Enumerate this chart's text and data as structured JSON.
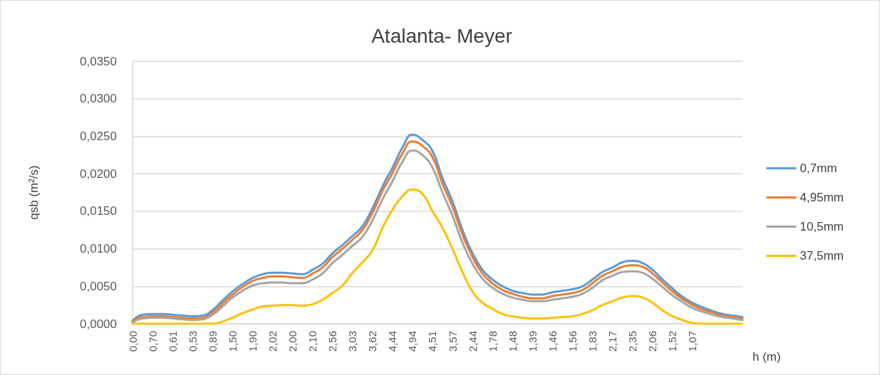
{
  "chart_data": {
    "type": "line",
    "title": "Atalanta- Meyer",
    "xlabel": "h (m)",
    "ylabel": "qsb (m²/s)",
    "categories": [
      "0,00",
      null,
      "0,70",
      null,
      "0,61",
      null,
      "0,53",
      null,
      "0,89",
      null,
      "1,50",
      null,
      "1,90",
      null,
      "2,02",
      null,
      "2,00",
      null,
      "2,10",
      null,
      "2,56",
      null,
      "3,03",
      null,
      "3,62",
      null,
      "4,44",
      null,
      "4,94",
      null,
      "4,51",
      null,
      "3,57",
      null,
      "2,44",
      null,
      "1,78",
      null,
      "1,48",
      null,
      "1,39",
      null,
      "1,46",
      null,
      "1,56",
      null,
      "1,83",
      null,
      "2,17",
      null,
      "2,35",
      null,
      "2,06",
      null,
      "1,52",
      null,
      "1,07",
      null,
      null,
      null,
      null,
      null
    ],
    "series": [
      {
        "name": "0,7mm",
        "color": "#5b9bd5",
        "values": [
          0.0004,
          0.0012,
          0.0013,
          0.0013,
          0.0012,
          0.0011,
          0.001,
          0.0011,
          0.0018,
          0.0031,
          0.0043,
          0.0053,
          0.0061,
          0.0066,
          0.0068,
          0.0068,
          0.0067,
          0.0066,
          0.0072,
          0.008,
          0.0094,
          0.0105,
          0.0117,
          0.013,
          0.0154,
          0.0183,
          0.0208,
          0.0235,
          0.0252,
          0.0245,
          0.023,
          0.0194,
          0.0163,
          0.0125,
          0.0094,
          0.0072,
          0.0059,
          0.005,
          0.0044,
          0.0041,
          0.0039,
          0.0039,
          0.0042,
          0.0044,
          0.0046,
          0.005,
          0.0059,
          0.0069,
          0.0075,
          0.0082,
          0.0084,
          0.0081,
          0.0072,
          0.0059,
          0.0047,
          0.0036,
          0.0028,
          0.0022,
          0.0017,
          0.0013,
          0.0011,
          0.0009
        ]
      },
      {
        "name": "4,95mm",
        "color": "#ed7d31",
        "values": [
          0.0003,
          0.0009,
          0.001,
          0.001,
          0.0009,
          0.0008,
          0.0007,
          0.0008,
          0.0015,
          0.0027,
          0.0039,
          0.0049,
          0.0057,
          0.0061,
          0.0063,
          0.0063,
          0.0062,
          0.0061,
          0.0067,
          0.0075,
          0.0089,
          0.01,
          0.0112,
          0.0125,
          0.0148,
          0.0177,
          0.0201,
          0.0227,
          0.0243,
          0.0237,
          0.0222,
          0.0187,
          0.0156,
          0.0119,
          0.0089,
          0.0067,
          0.0054,
          0.0045,
          0.004,
          0.0036,
          0.0034,
          0.0034,
          0.0037,
          0.0039,
          0.0041,
          0.0045,
          0.0054,
          0.0064,
          0.007,
          0.0076,
          0.0078,
          0.0076,
          0.0067,
          0.0055,
          0.0043,
          0.0033,
          0.0025,
          0.0019,
          0.0015,
          0.0011,
          0.0009,
          0.0007
        ]
      },
      {
        "name": "10,5mm",
        "color": "#a5a5a5",
        "values": [
          0.0002,
          0.0007,
          0.0008,
          0.0008,
          0.0007,
          0.0006,
          0.0005,
          0.0006,
          0.0012,
          0.0023,
          0.0035,
          0.0044,
          0.0051,
          0.0054,
          0.0055,
          0.0055,
          0.0054,
          0.0054,
          0.0059,
          0.0067,
          0.0081,
          0.0092,
          0.0104,
          0.0116,
          0.0138,
          0.0166,
          0.019,
          0.0216,
          0.0231,
          0.0225,
          0.0208,
          0.0175,
          0.0144,
          0.0108,
          0.008,
          0.006,
          0.0048,
          0.004,
          0.0035,
          0.0032,
          0.003,
          0.003,
          0.0032,
          0.0034,
          0.0036,
          0.004,
          0.0048,
          0.0058,
          0.0064,
          0.0069,
          0.007,
          0.0068,
          0.006,
          0.0049,
          0.0038,
          0.0029,
          0.0021,
          0.0016,
          0.0012,
          0.0009,
          0.0007,
          0.0005
        ]
      },
      {
        "name": "37,5mm",
        "color": "#ffc000",
        "values": [
          0,
          0,
          0,
          0,
          0,
          0,
          0,
          0,
          0,
          0.0003,
          0.0008,
          0.0014,
          0.0019,
          0.0023,
          0.0024,
          0.0025,
          0.0025,
          0.0024,
          0.0026,
          0.0032,
          0.0041,
          0.0051,
          0.0068,
          0.0082,
          0.0098,
          0.0128,
          0.0152,
          0.017,
          0.0179,
          0.0173,
          0.015,
          0.0128,
          0.01,
          0.0069,
          0.0043,
          0.0028,
          0.002,
          0.0013,
          0.001,
          0.0008,
          0.0007,
          0.0007,
          0.0008,
          0.0009,
          0.001,
          0.0013,
          0.0018,
          0.0025,
          0.003,
          0.0035,
          0.0037,
          0.0035,
          0.0028,
          0.0018,
          0.001,
          0.0005,
          0.0001,
          0,
          0,
          0,
          0,
          0
        ]
      }
    ],
    "ylim": [
      0,
      0.035
    ],
    "yticks": [
      {
        "value": 0,
        "label": "0,0000"
      },
      {
        "value": 0.005,
        "label": "0,0050"
      },
      {
        "value": 0.01,
        "label": "0,0100"
      },
      {
        "value": 0.015,
        "label": "0,0150"
      },
      {
        "value": 0.02,
        "label": "0,0200"
      },
      {
        "value": 0.025,
        "label": "0,0250"
      },
      {
        "value": 0.03,
        "label": "0,0300"
      },
      {
        "value": 0.035,
        "label": "0,0350"
      }
    ],
    "grid": "y",
    "legend": "right",
    "marker": "none",
    "line_style": "solid"
  }
}
